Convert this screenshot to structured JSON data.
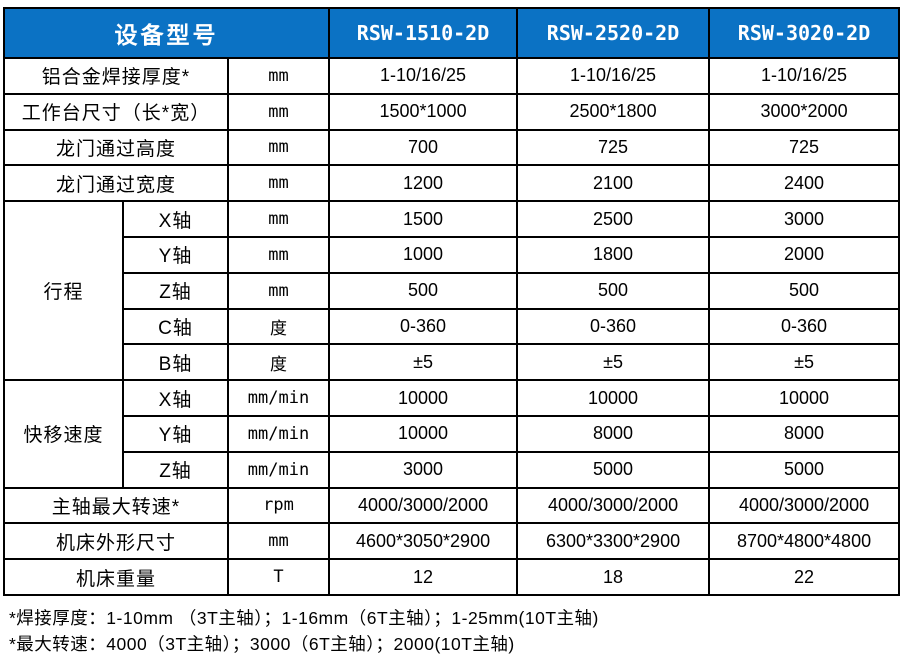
{
  "colors": {
    "header_bg": "#0b72c4",
    "header_text": "#ffffff",
    "border": "#000000",
    "body_text": "#000000"
  },
  "table": {
    "header": {
      "device_label": "设备型号",
      "models": [
        "RSW-1510-2D",
        "RSW-2520-2D",
        "RSW-3020-2D"
      ]
    },
    "rows": [
      {
        "label": "铝合金焊接厚度*",
        "unit": "mm",
        "values": [
          "1-10/16/25",
          "1-10/16/25",
          "1-10/16/25"
        ]
      },
      {
        "label": "工作台尺寸（长*宽）",
        "unit": "mm",
        "values": [
          "1500*1000",
          "2500*1800",
          "3000*2000"
        ]
      },
      {
        "label": "龙门通过高度",
        "unit": "mm",
        "values": [
          "700",
          "725",
          "725"
        ]
      },
      {
        "label": "龙门通过宽度",
        "unit": "mm",
        "values": [
          "1200",
          "2100",
          "2400"
        ]
      },
      {
        "group": "行程",
        "axis": "X轴",
        "unit": "mm",
        "values": [
          "1500",
          "2500",
          "3000"
        ]
      },
      {
        "axis": "Y轴",
        "unit": "mm",
        "values": [
          "1000",
          "1800",
          "2000"
        ]
      },
      {
        "axis": "Z轴",
        "unit": "mm",
        "values": [
          "500",
          "500",
          "500"
        ]
      },
      {
        "axis": "C轴",
        "unit": "度",
        "values": [
          "0-360",
          "0-360",
          "0-360"
        ]
      },
      {
        "axis": "B轴",
        "unit": "度",
        "values": [
          "±5",
          "±5",
          "±5"
        ]
      },
      {
        "group": "快移速度",
        "axis": "X轴",
        "unit": "mm/min",
        "values": [
          "10000",
          "10000",
          "10000"
        ]
      },
      {
        "axis": "Y轴",
        "unit": "mm/min",
        "values": [
          "10000",
          "8000",
          "8000"
        ]
      },
      {
        "axis": "Z轴",
        "unit": "mm/min",
        "values": [
          "3000",
          "5000",
          "5000"
        ]
      },
      {
        "label": "主轴最大转速*",
        "unit": "rpm",
        "values": [
          "4000/3000/2000",
          "4000/3000/2000",
          "4000/3000/2000"
        ]
      },
      {
        "label": "机床外形尺寸",
        "unit": "mm",
        "values": [
          "4600*3050*2900",
          "6300*3300*2900",
          "8700*4800*4800"
        ]
      },
      {
        "label": "机床重量",
        "unit": "T",
        "values": [
          "12",
          "18",
          "22"
        ]
      }
    ]
  },
  "footnotes": [
    "*焊接厚度：1-10mm （3T主轴）；1-16mm（6T主轴）；1-25mm(10T主轴)",
    "*最大转速：4000（3T主轴）；3000（6T主轴）；2000(10T主轴)"
  ]
}
